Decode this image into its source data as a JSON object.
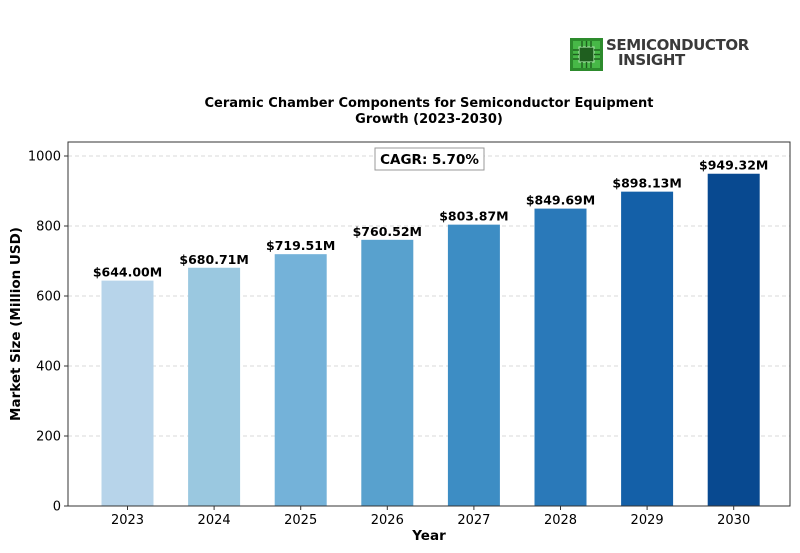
{
  "logo": {
    "line1": "SEMICONDUCTOR",
    "line2": "INSIGHT",
    "icon": "chip-icon",
    "icon_color": "#3fae3f"
  },
  "chart_data": {
    "type": "bar",
    "title": "Ceramic Chamber Components for Semiconductor Equipment",
    "subtitle": "Growth (2023-2030)",
    "xlabel": "Year",
    "ylabel": "Market Size (Million USD)",
    "categories": [
      "2023",
      "2024",
      "2025",
      "2026",
      "2027",
      "2028",
      "2029",
      "2030"
    ],
    "values": [
      644.0,
      680.71,
      719.51,
      760.52,
      803.87,
      849.69,
      898.13,
      949.32
    ],
    "data_labels": [
      "$644.00M",
      "$680.71M",
      "$719.51M",
      "$760.52M",
      "$803.87M",
      "$849.69M",
      "$898.13M",
      "$949.32M"
    ],
    "colors": [
      "#b7d4ea",
      "#9ac8e0",
      "#74b2d9",
      "#58a1ce",
      "#3d8dc4",
      "#2a79b9",
      "#1460a8",
      "#084990"
    ],
    "ylim": [
      0,
      1040
    ],
    "yticks": [
      0,
      200,
      400,
      600,
      800,
      1000
    ],
    "grid": true,
    "annotation": "CAGR: 5.70%"
  }
}
